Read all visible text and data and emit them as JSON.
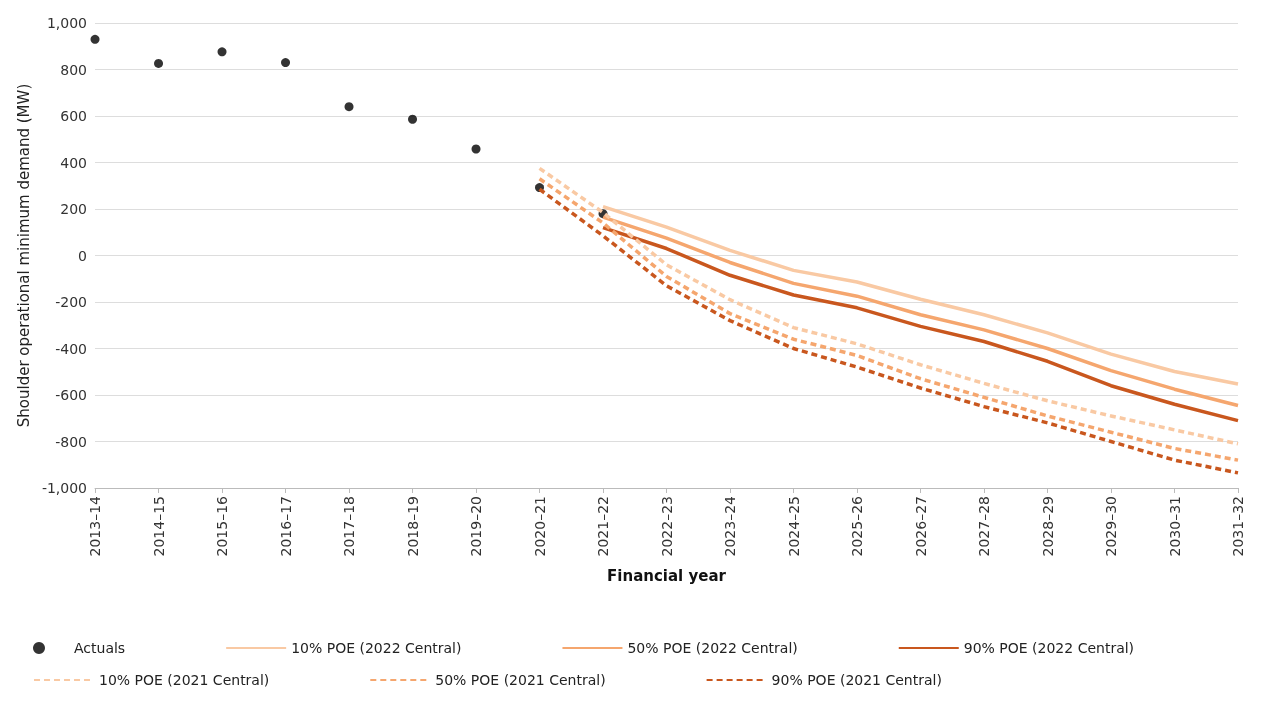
{
  "chart_data": {
    "type": "line",
    "xlabel": "Financial year",
    "ylabel": "Shoulder operational minimum demand (MW)",
    "categories": [
      "2013–14",
      "2014–15",
      "2015–16",
      "2016–17",
      "2017–18",
      "2018–19",
      "2019–20",
      "2020–21",
      "2021–22",
      "2022–23",
      "2023–24",
      "2024–25",
      "2025–26",
      "2026–27",
      "2027–28",
      "2028–29",
      "2029–30",
      "2030–31",
      "2031–32"
    ],
    "ylim": [
      -1000,
      1000
    ],
    "yticks": [
      {
        "value": -1000,
        "label": "-1,000"
      },
      -800,
      -600,
      -400,
      -200,
      0,
      200,
      400,
      600,
      800,
      {
        "value": 1000,
        "label": "1,000"
      }
    ],
    "grid": "y",
    "legend": "bottom",
    "series": [
      {
        "name": "Actuals",
        "type": "scatter",
        "marker": "circle",
        "color": "#000000",
        "values": [
          930,
          826,
          876,
          830,
          640,
          586,
          458,
          292,
          180,
          null,
          null,
          null,
          null,
          null,
          null,
          null,
          null,
          null,
          null
        ]
      },
      {
        "name": "10% POE (2022 Central)",
        "color": "#f9c9a3",
        "line_style": "solid",
        "values": [
          null,
          null,
          null,
          null,
          null,
          null,
          null,
          null,
          210,
          122,
          22,
          -64,
          -114,
          -188,
          -255,
          -333,
          -424,
          -499,
          -553
        ]
      },
      {
        "name": "50% POE (2022 Central)",
        "color": "#f5a66e",
        "line_style": "solid",
        "values": [
          null,
          null,
          null,
          null,
          null,
          null,
          null,
          null,
          165,
          75,
          -30,
          -120,
          -175,
          -255,
          -320,
          -400,
          -495,
          -575,
          -645
        ]
      },
      {
        "name": "90% POE (2022 Central)",
        "color": "#c9571e",
        "line_style": "solid",
        "values": [
          null,
          null,
          null,
          null,
          null,
          null,
          null,
          null,
          120,
          30,
          -85,
          -170,
          -225,
          -305,
          -370,
          -455,
          -560,
          -640,
          -710
        ]
      },
      {
        "name": "10% POE (2021 Central)",
        "color": "#f9c9a3",
        "line_style": "dashed",
        "values": [
          null,
          null,
          null,
          null,
          null,
          null,
          null,
          375,
          185,
          -40,
          -190,
          -310,
          -380,
          -470,
          -550,
          -625,
          -690,
          -750,
          -810
        ]
      },
      {
        "name": "50% POE (2021 Central)",
        "color": "#f5a66e",
        "line_style": "dashed",
        "values": [
          null,
          null,
          null,
          null,
          null,
          null,
          null,
          330,
          140,
          -90,
          -250,
          -360,
          -430,
          -530,
          -610,
          -690,
          -760,
          -830,
          -880
        ]
      },
      {
        "name": "90% POE (2021 Central)",
        "color": "#c9571e",
        "line_style": "dashed",
        "values": [
          null,
          null,
          null,
          null,
          null,
          null,
          null,
          285,
          85,
          -130,
          -280,
          -400,
          -480,
          -570,
          -650,
          -720,
          -800,
          -880,
          -935
        ]
      }
    ]
  }
}
